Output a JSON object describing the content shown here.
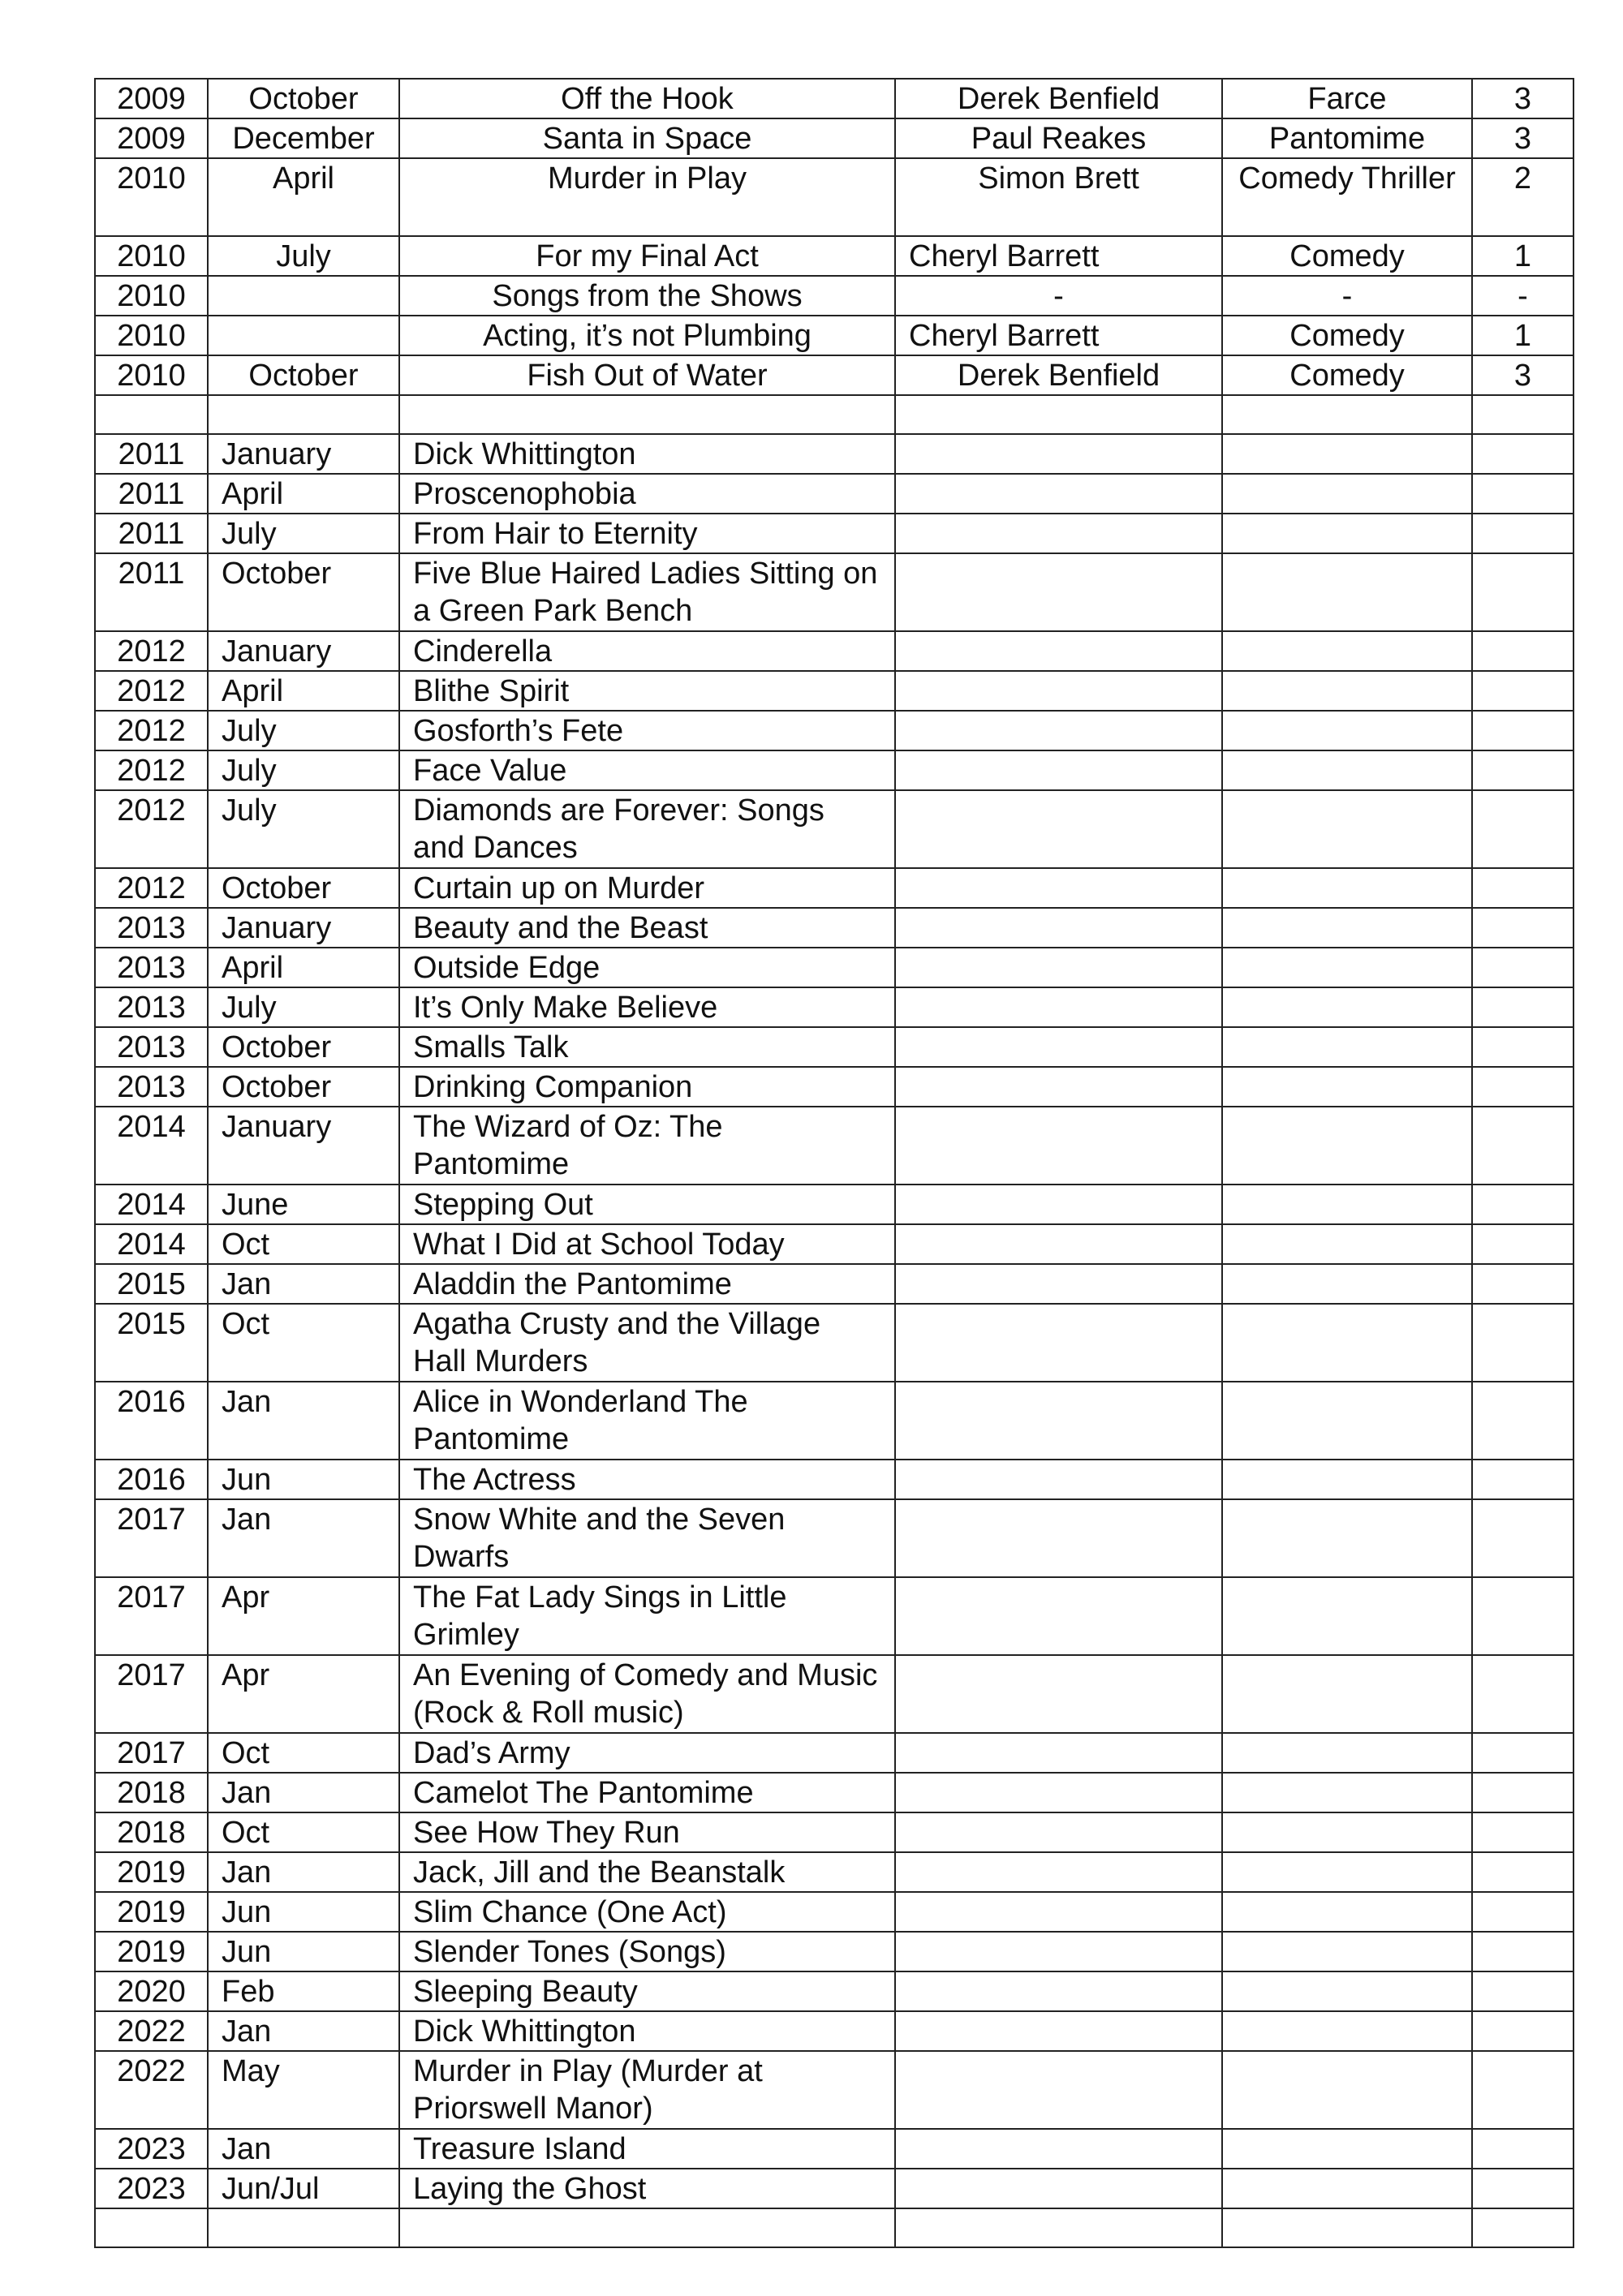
{
  "rows": [
    {
      "year": "2009",
      "month": "October",
      "title": "Off the Hook",
      "author": "Derek Benfield",
      "genre": "Farce",
      "acts": "3",
      "centered": true
    },
    {
      "year": "2009",
      "month": "December",
      "title": "Santa in Space",
      "author": "Paul Reakes",
      "genre": "Pantomime",
      "acts": "3",
      "centered": true
    },
    {
      "year": "2010",
      "month": "April",
      "title": "Murder in Play",
      "author": "Simon Brett",
      "genre": "Comedy Thriller",
      "acts": "2",
      "centered": true,
      "double": true
    },
    {
      "year": "2010",
      "month": "July",
      "title": "For my Final Act",
      "author": "Cheryl Barrett",
      "genre": "Comedy",
      "acts": "1",
      "centered": true,
      "author_left": true
    },
    {
      "year": "2010",
      "month": "",
      "title": "Songs from the Shows",
      "author": "-",
      "genre": "-",
      "acts": "-",
      "centered": true
    },
    {
      "year": "2010",
      "month": "",
      "title": "Acting, it’s not Plumbing",
      "author": "Cheryl Barrett",
      "genre": "Comedy",
      "acts": "1",
      "centered": true,
      "author_left": true
    },
    {
      "year": "2010",
      "month": "October",
      "title": "Fish Out of Water",
      "author": "Derek Benfield",
      "genre": "Comedy",
      "acts": "3",
      "centered": true
    },
    {
      "year": "",
      "month": "",
      "title": "",
      "author": "",
      "genre": "",
      "acts": ""
    },
    {
      "year": "2011",
      "month": "January",
      "title": "Dick Whittington"
    },
    {
      "year": "2011",
      "month": "April",
      "title": "Proscenophobia"
    },
    {
      "year": "2011",
      "month": "July",
      "title": "From Hair to Eternity"
    },
    {
      "year": "2011",
      "month": "October",
      "title": "Five Blue Haired Ladies Sitting on a Green Park Bench",
      "double": true
    },
    {
      "year": "2012",
      "month": "January",
      "title": "Cinderella"
    },
    {
      "year": "2012",
      "month": "April",
      "title": "Blithe Spirit"
    },
    {
      "year": "2012",
      "month": "July",
      "title": "Gosforth’s Fete"
    },
    {
      "year": "2012",
      "month": "July",
      "title": "Face Value"
    },
    {
      "year": "2012",
      "month": "July",
      "title": "Diamonds are Forever: Songs and Dances",
      "double": true
    },
    {
      "year": "2012",
      "month": "October",
      "title": "Curtain up on Murder"
    },
    {
      "year": "2013",
      "month": "January",
      "title": "Beauty and the Beast"
    },
    {
      "year": "2013",
      "month": "April",
      "title": "Outside Edge"
    },
    {
      "year": "2013",
      "month": "July",
      "title": "It’s Only Make Believe"
    },
    {
      "year": "2013",
      "month": "October",
      "title": "Smalls Talk"
    },
    {
      "year": "2013",
      "month": "October",
      "title": "Drinking Companion"
    },
    {
      "year": "2014",
      "month": "January",
      "title": "The Wizard of Oz: The Pantomime",
      "double": true
    },
    {
      "year": "2014",
      "month": "June",
      "title": "Stepping Out"
    },
    {
      "year": "2014",
      "month": "Oct",
      "title": "What I Did at School Today"
    },
    {
      "year": "2015",
      "month": "Jan",
      "title": "Aladdin the Pantomime"
    },
    {
      "year": "2015",
      "month": "Oct",
      "title": "Agatha Crusty and the Village Hall Murders",
      "double": true
    },
    {
      "year": "2016",
      "month": "Jan",
      "title": "Alice in Wonderland The Pantomime",
      "double": true
    },
    {
      "year": "2016",
      "month": "Jun",
      "title": "The Actress"
    },
    {
      "year": "2017",
      "month": "Jan",
      "title": "Snow White and the Seven Dwarfs",
      "double": true
    },
    {
      "year": "2017",
      "month": "Apr",
      "title": "The Fat Lady Sings in Little Grimley",
      "double": true
    },
    {
      "year": "2017",
      "month": "Apr",
      "title": "An Evening of Comedy and Music (Rock & Roll music)",
      "double": true
    },
    {
      "year": "2017",
      "month": "Oct",
      "title": "Dad’s Army"
    },
    {
      "year": "2018",
      "month": "Jan",
      "title": "Camelot The Pantomime"
    },
    {
      "year": "2018",
      "month": "Oct",
      "title": "See How They Run"
    },
    {
      "year": "2019",
      "month": "Jan",
      "title": "Jack, Jill and the Beanstalk"
    },
    {
      "year": "2019",
      "month": "Jun",
      "title": "Slim Chance (One Act)"
    },
    {
      "year": "2019",
      "month": "Jun",
      "title": "Slender Tones (Songs)"
    },
    {
      "year": "2020",
      "month": "Feb",
      "title": "Sleeping Beauty"
    },
    {
      "year": "2022",
      "month": "Jan",
      "title": "Dick Whittington"
    },
    {
      "year": "2022",
      "month": "May",
      "title": "Murder in Play (Murder at Priorswell Manor)",
      "double": true
    },
    {
      "year": "2023",
      "month": "Jan",
      "title": "Treasure Island"
    },
    {
      "year": "2023",
      "month": "Jun/Jul",
      "title": "Laying the Ghost"
    },
    {
      "year": "",
      "month": "",
      "title": ""
    }
  ]
}
